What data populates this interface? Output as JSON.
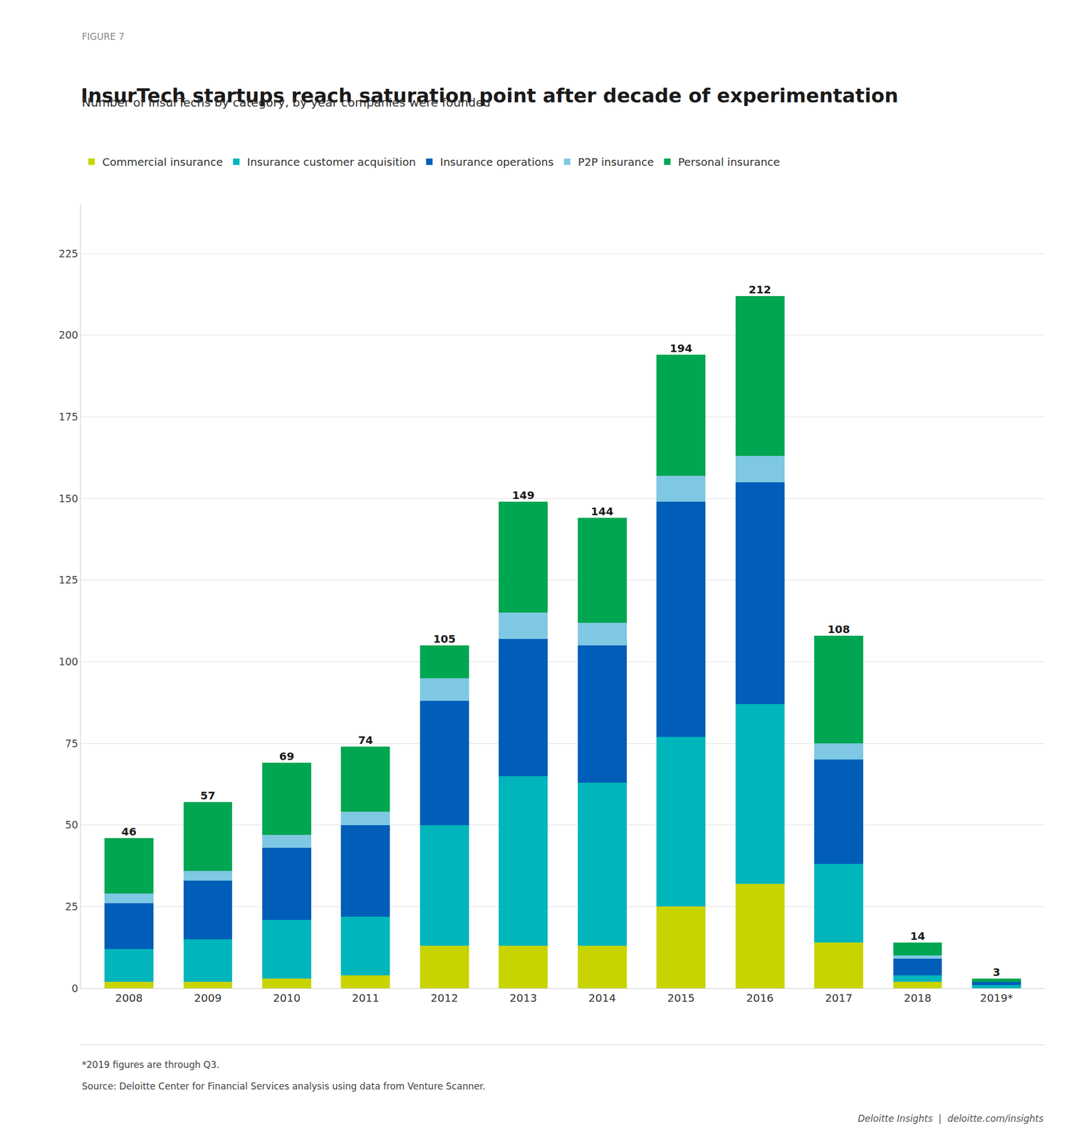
{
  "chart_data": {
    "type": "bar",
    "stacked": true,
    "figure_label": "FIGURE 7",
    "title": "InsurTech startups reach saturation point after decade of experimentation",
    "subtitle": "Number of InsurTechs by category, by year companies were founded",
    "categories": [
      "2008",
      "2009",
      "2010",
      "2011",
      "2012",
      "2013",
      "2014",
      "2015",
      "2016",
      "2017",
      "2018",
      "2019*"
    ],
    "series": [
      {
        "name": "Commercial insurance",
        "color": "#c8d400",
        "values": [
          2,
          2,
          3,
          4,
          13,
          13,
          13,
          25,
          32,
          14,
          2,
          0
        ]
      },
      {
        "name": "Insurance customer acquisition",
        "color": "#00b5bc",
        "values": [
          10,
          13,
          18,
          18,
          37,
          52,
          50,
          52,
          55,
          24,
          2,
          1
        ]
      },
      {
        "name": "Insurance operations",
        "color": "#005eb8",
        "values": [
          14,
          18,
          22,
          28,
          38,
          42,
          42,
          72,
          68,
          32,
          5,
          1
        ]
      },
      {
        "name": "P2P insurance",
        "color": "#7ec8e3",
        "values": [
          3,
          3,
          4,
          4,
          7,
          8,
          7,
          8,
          8,
          5,
          1,
          0
        ]
      },
      {
        "name": "Personal insurance",
        "color": "#00a651",
        "values": [
          17,
          21,
          22,
          20,
          10,
          34,
          32,
          37,
          49,
          33,
          4,
          1
        ]
      }
    ],
    "totals": [
      46,
      57,
      69,
      74,
      105,
      149,
      144,
      194,
      212,
      108,
      14,
      3
    ],
    "ylim": [
      0,
      240
    ],
    "yticks": [
      0,
      25,
      50,
      75,
      100,
      125,
      150,
      175,
      200,
      225
    ],
    "grid": true,
    "legend": "upper left",
    "footnotes": [
      "*2019 figures are through Q3.",
      "Source: Deloitte Center for Financial Services analysis using data from Venture Scanner."
    ],
    "branding": "Deloitte Insights  |  deloitte.com/insights"
  }
}
